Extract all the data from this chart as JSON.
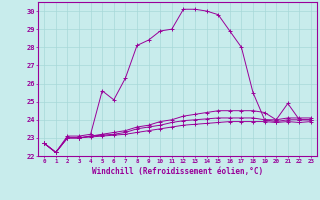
{
  "xlabel": "Windchill (Refroidissement éolien,°C)",
  "background_color": "#c8ecec",
  "grid_color": "#b0d0d0",
  "line_color": "#990099",
  "xlim": [
    -0.5,
    23.5
  ],
  "ylim": [
    22,
    30.5
  ],
  "yticks": [
    22,
    23,
    24,
    25,
    26,
    27,
    28,
    29,
    30
  ],
  "xticks": [
    0,
    1,
    2,
    3,
    4,
    5,
    6,
    7,
    8,
    9,
    10,
    11,
    12,
    13,
    14,
    15,
    16,
    17,
    18,
    19,
    20,
    21,
    22,
    23
  ],
  "series": [
    {
      "x": [
        0,
        1,
        2,
        3,
        4,
        5,
        6,
        7,
        8,
        9,
        10,
        11,
        12,
        13,
        14,
        15,
        16,
        17,
        18,
        19,
        20,
        21,
        22,
        23
      ],
      "y": [
        22.7,
        22.2,
        23.1,
        23.1,
        23.2,
        25.6,
        25.1,
        26.3,
        28.1,
        28.4,
        28.9,
        29.0,
        30.1,
        30.1,
        30.0,
        29.8,
        28.9,
        28.0,
        25.5,
        24.0,
        24.0,
        24.9,
        24.0,
        24.0
      ]
    },
    {
      "x": [
        0,
        1,
        2,
        3,
        4,
        5,
        6,
        7,
        8,
        9,
        10,
        11,
        12,
        13,
        14,
        15,
        16,
        17,
        18,
        19,
        20,
        21,
        22,
        23
      ],
      "y": [
        22.7,
        22.2,
        23.0,
        23.0,
        23.1,
        23.2,
        23.3,
        23.4,
        23.6,
        23.7,
        23.9,
        24.0,
        24.2,
        24.3,
        24.4,
        24.5,
        24.5,
        24.5,
        24.5,
        24.4,
        24.0,
        24.1,
        24.1,
        24.1
      ]
    },
    {
      "x": [
        0,
        1,
        2,
        3,
        4,
        5,
        6,
        7,
        8,
        9,
        10,
        11,
        12,
        13,
        14,
        15,
        16,
        17,
        18,
        19,
        20,
        21,
        22,
        23
      ],
      "y": [
        22.7,
        22.2,
        23.0,
        23.0,
        23.1,
        23.15,
        23.2,
        23.3,
        23.5,
        23.6,
        23.7,
        23.85,
        23.95,
        24.0,
        24.05,
        24.1,
        24.1,
        24.1,
        24.1,
        24.0,
        23.9,
        24.0,
        24.0,
        24.0
      ]
    },
    {
      "x": [
        0,
        1,
        2,
        3,
        4,
        5,
        6,
        7,
        8,
        9,
        10,
        11,
        12,
        13,
        14,
        15,
        16,
        17,
        18,
        19,
        20,
        21,
        22,
        23
      ],
      "y": [
        22.7,
        22.2,
        23.0,
        23.0,
        23.05,
        23.1,
        23.15,
        23.2,
        23.3,
        23.4,
        23.5,
        23.6,
        23.7,
        23.75,
        23.8,
        23.85,
        23.9,
        23.9,
        23.9,
        23.9,
        23.85,
        23.9,
        23.85,
        23.9
      ]
    }
  ]
}
